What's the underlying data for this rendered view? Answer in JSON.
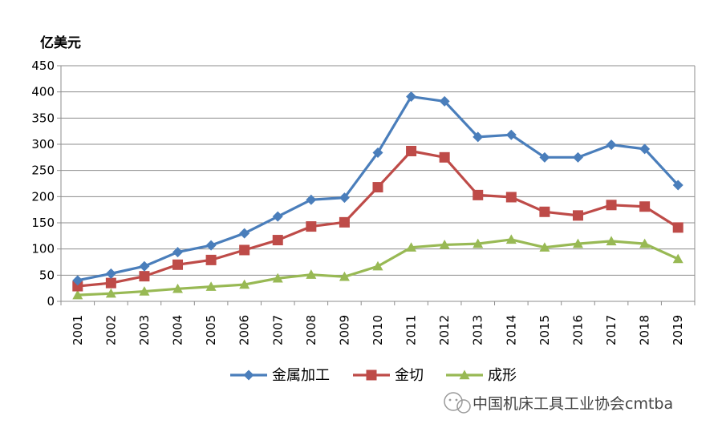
{
  "chart_data": {
    "type": "line",
    "ylabel": "亿美元",
    "xlabel": "",
    "title": "",
    "ylim": [
      0,
      450
    ],
    "ytick_step": 50,
    "categories": [
      "2001",
      "2002",
      "2003",
      "2004",
      "2005",
      "2006",
      "2007",
      "2008",
      "2009",
      "2010",
      "2011",
      "2012",
      "2013",
      "2014",
      "2015",
      "2016",
      "2017",
      "2018",
      "2019"
    ],
    "series": [
      {
        "name": "金属加工",
        "color": "#4a7ebb",
        "marker": "diamond",
        "values": [
          40,
          53,
          67,
          94,
          107,
          130,
          162,
          194,
          198,
          284,
          391,
          382,
          314,
          318,
          275,
          275,
          299,
          291,
          222
        ]
      },
      {
        "name": "金切",
        "color": "#be4b48",
        "marker": "square",
        "values": [
          29,
          35,
          48,
          70,
          79,
          98,
          117,
          143,
          151,
          218,
          287,
          275,
          203,
          199,
          171,
          164,
          184,
          181,
          141
        ]
      },
      {
        "name": "成形",
        "color": "#98b954",
        "marker": "triangle",
        "values": [
          12,
          15,
          19,
          24,
          28,
          32,
          44,
          51,
          47,
          67,
          103,
          108,
          110,
          118,
          103,
          110,
          115,
          110,
          81
        ]
      }
    ],
    "grid": true,
    "legend_position": "bottom"
  },
  "watermark": {
    "text": "中国机床工具工业协会cmtba",
    "icon": "wechat-icon"
  }
}
